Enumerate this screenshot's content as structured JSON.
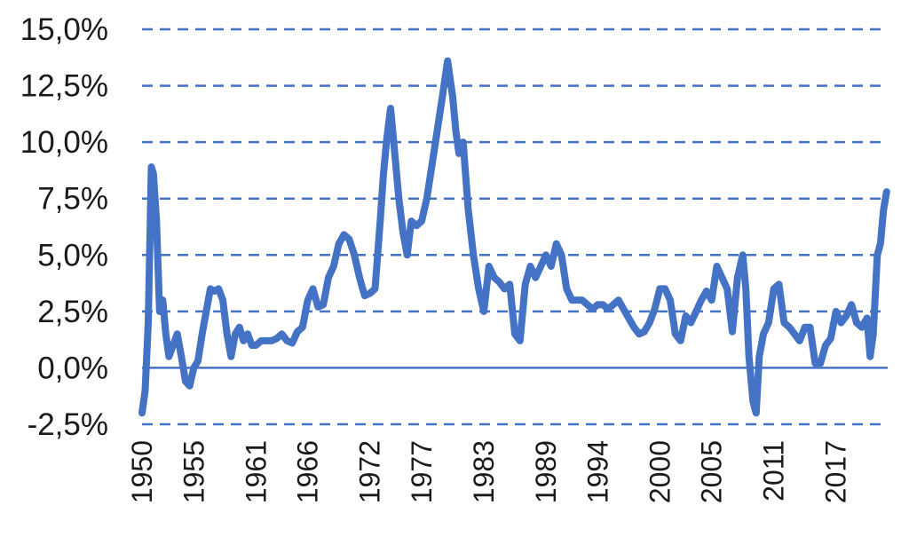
{
  "chart_data": {
    "type": "line",
    "title": "",
    "xlabel": "",
    "ylabel": "",
    "ylim": [
      -2.5,
      15.0
    ],
    "xlim": [
      1950,
      2022
    ],
    "y_tick_labels": [
      "-2,5%",
      "0,0%",
      "2,5%",
      "5,0%",
      "7,5%",
      "10,0%",
      "12,5%",
      "15,0%"
    ],
    "y_tick_values": [
      -2.5,
      0.0,
      2.5,
      5.0,
      7.5,
      10.0,
      12.5,
      15.0
    ],
    "x_tick_labels": [
      "1950",
      "1955",
      "1961",
      "1966",
      "1972",
      "1977",
      "1983",
      "1989",
      "1994",
      "2000",
      "2005",
      "2011",
      "2017"
    ],
    "x_tick_values": [
      1950,
      1955,
      1961,
      1966,
      1972,
      1977,
      1983,
      1989,
      1994,
      2000,
      2005,
      2011,
      2017
    ],
    "grid": "horizontal dashed",
    "legend": "none",
    "colors": {
      "line": "#4472C4",
      "grid": "#4472C4",
      "zero_line": "#4472C4"
    },
    "series": [
      {
        "name": "",
        "x": [
          1950.0,
          1950.3,
          1950.6,
          1950.9,
          1951.1,
          1951.4,
          1951.7,
          1952.0,
          1952.3,
          1952.6,
          1953.0,
          1953.4,
          1953.8,
          1954.2,
          1954.6,
          1955.0,
          1955.4,
          1955.8,
          1956.2,
          1956.6,
          1957.0,
          1957.4,
          1957.8,
          1958.2,
          1958.6,
          1959.0,
          1959.4,
          1959.8,
          1960.2,
          1960.6,
          1961.0,
          1961.5,
          1962.0,
          1962.5,
          1963.0,
          1963.5,
          1964.0,
          1964.5,
          1965.0,
          1965.5,
          1966.0,
          1966.5,
          1967.0,
          1967.5,
          1968.0,
          1968.5,
          1969.0,
          1969.5,
          1970.0,
          1970.5,
          1971.0,
          1971.5,
          1972.0,
          1972.5,
          1973.0,
          1973.3,
          1973.6,
          1974.0,
          1974.4,
          1974.8,
          1975.2,
          1975.6,
          1976.0,
          1976.5,
          1977.0,
          1977.5,
          1978.0,
          1978.5,
          1979.0,
          1979.5,
          1980.0,
          1980.3,
          1980.6,
          1981.0,
          1981.5,
          1982.0,
          1982.5,
          1983.0,
          1983.5,
          1984.0,
          1984.5,
          1985.0,
          1985.5,
          1986.0,
          1986.5,
          1987.0,
          1987.5,
          1988.0,
          1988.5,
          1989.0,
          1989.5,
          1990.0,
          1990.5,
          1991.0,
          1991.5,
          1992.0,
          1992.5,
          1993.0,
          1993.5,
          1994.0,
          1994.5,
          1995.0,
          1995.5,
          1996.0,
          1996.5,
          1997.0,
          1997.5,
          1998.0,
          1998.5,
          1999.0,
          1999.5,
          2000.0,
          2000.5,
          2001.0,
          2001.5,
          2002.0,
          2002.5,
          2003.0,
          2003.5,
          2004.0,
          2004.5,
          2005.0,
          2005.5,
          2006.0,
          2006.5,
          2007.0,
          2007.5,
          2008.0,
          2008.3,
          2008.6,
          2009.0,
          2009.3,
          2009.6,
          2010.0,
          2010.5,
          2011.0,
          2011.5,
          2012.0,
          2012.5,
          2013.0,
          2013.5,
          2014.0,
          2014.5,
          2015.0,
          2015.5,
          2016.0,
          2016.5,
          2017.0,
          2017.5,
          2018.0,
          2018.5,
          2019.0,
          2019.5,
          2020.0,
          2020.3,
          2020.6,
          2021.0,
          2021.3,
          2021.6,
          2021.9
        ],
        "y": [
          -2.0,
          -1.0,
          2.0,
          8.9,
          8.6,
          6.5,
          2.5,
          3.0,
          1.5,
          0.5,
          1.0,
          1.5,
          0.5,
          -0.6,
          -0.8,
          0.0,
          0.3,
          1.5,
          2.5,
          3.5,
          3.4,
          3.5,
          3.0,
          1.5,
          0.5,
          1.5,
          1.8,
          1.2,
          1.5,
          1.0,
          1.0,
          1.2,
          1.2,
          1.2,
          1.3,
          1.5,
          1.2,
          1.1,
          1.6,
          1.8,
          3.0,
          3.5,
          2.7,
          2.8,
          4.0,
          4.5,
          5.5,
          5.9,
          5.7,
          5.0,
          4.0,
          3.2,
          3.3,
          3.5,
          6.5,
          8.5,
          10.0,
          11.5,
          9.5,
          7.5,
          6.0,
          5.0,
          6.5,
          6.3,
          6.5,
          7.5,
          9.0,
          10.5,
          12.0,
          13.6,
          12.0,
          10.5,
          9.5,
          10.0,
          7.0,
          5.0,
          3.5,
          2.5,
          4.5,
          4.0,
          3.8,
          3.5,
          3.7,
          1.5,
          1.2,
          3.7,
          4.5,
          4.0,
          4.5,
          5.0,
          4.5,
          5.5,
          5.0,
          3.5,
          3.0,
          3.0,
          3.0,
          2.8,
          2.6,
          2.8,
          2.8,
          2.6,
          2.8,
          3.0,
          2.6,
          2.2,
          1.8,
          1.5,
          1.6,
          2.0,
          2.6,
          3.5,
          3.5,
          3.0,
          1.5,
          1.2,
          2.3,
          2.0,
          2.5,
          3.0,
          3.4,
          3.0,
          4.5,
          4.0,
          3.5,
          1.6,
          4.0,
          5.0,
          3.5,
          0.5,
          -1.5,
          -2.0,
          0.5,
          1.5,
          2.0,
          3.5,
          3.7,
          2.0,
          1.8,
          1.5,
          1.2,
          1.8,
          1.8,
          0.2,
          0.2,
          1.0,
          1.3,
          2.5,
          2.0,
          2.3,
          2.8,
          2.0,
          1.8,
          2.2,
          0.5,
          1.5,
          5.0,
          5.5,
          7.0,
          7.8
        ]
      }
    ]
  }
}
